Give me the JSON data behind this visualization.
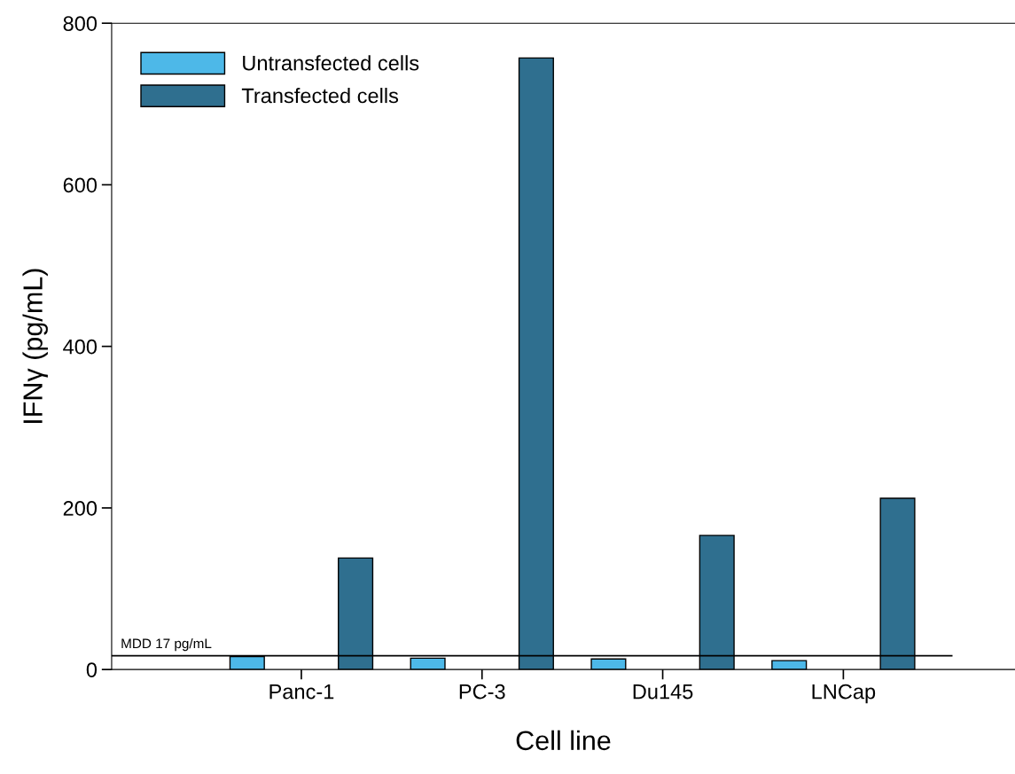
{
  "chart_data": {
    "type": "bar",
    "xlabel": "Cell line",
    "ylabel": "IFNγ (pg/mL)",
    "categories": [
      "Panc-1",
      "PC-3",
      "Du145",
      "LNCap"
    ],
    "series": [
      {
        "name": "Untransfected cells",
        "color": "#4db8e8",
        "values": [
          16,
          14,
          13,
          11
        ]
      },
      {
        "name": "Transfected cells",
        "color": "#2f6f8f",
        "values": [
          138,
          757,
          166,
          212
        ]
      }
    ],
    "ylim": [
      0,
      800
    ],
    "yticks": [
      0,
      200,
      400,
      600,
      800
    ],
    "ref_lines": [
      {
        "axis": "y",
        "value": 17,
        "label": "MDD 17 pg/mL",
        "color": "#000000"
      }
    ],
    "legend": "top left",
    "grid": false
  }
}
